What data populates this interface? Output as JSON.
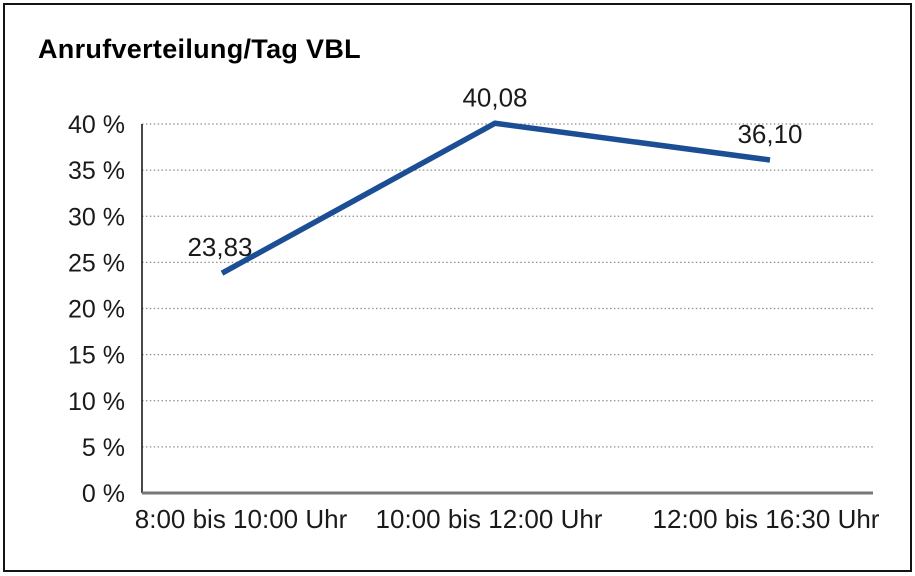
{
  "chart": {
    "title": "Anrufverteilung/Tag VBL"
  },
  "chart_data": {
    "type": "line",
    "title": "Anrufverteilung/Tag VBL",
    "categories": [
      "8:00 bis 10:00 Uhr",
      "10:00 bis 12:00 Uhr",
      "12:00 bis 16:30 Uhr"
    ],
    "values": [
      23.83,
      40.08,
      36.1
    ],
    "value_labels": [
      "23,83",
      "40,08",
      "36,10"
    ],
    "xlabel": "",
    "ylabel": "",
    "ylim": [
      0,
      40
    ],
    "yticks": [
      0,
      5,
      10,
      15,
      20,
      25,
      30,
      35,
      40
    ],
    "ytick_labels": [
      "0 %",
      "5 %",
      "10 %",
      "15 %",
      "20 %",
      "25 %",
      "30 %",
      "35 %",
      "40 %"
    ],
    "grid": "horizontal-dotted",
    "legend": "none",
    "colors": {
      "line": "#1b4e94",
      "gridline": "#8f8f8f",
      "baseline": "#777777",
      "axis": "#1a1a1a",
      "text": "#1a1a1a",
      "background": "#ffffff",
      "border": "#141414"
    }
  }
}
